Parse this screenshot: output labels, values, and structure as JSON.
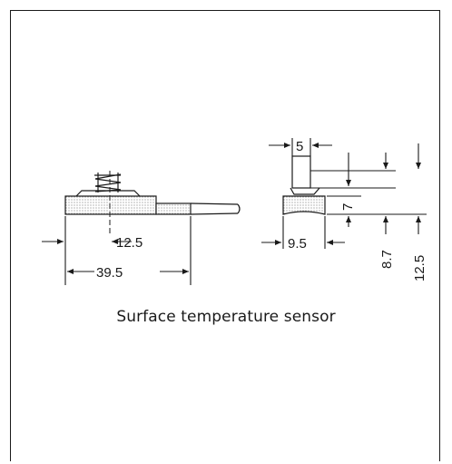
{
  "caption": "Surface temperature sensor",
  "side_view": {
    "dim_offset": "12.5",
    "dim_length": "39.5"
  },
  "end_view": {
    "dim_width_top": "5",
    "dim_width_base": "9.5",
    "dim_height_step": "7",
    "dim_height_body": "8.7",
    "dim_height_total": "12.5"
  },
  "colors": {
    "line": "#1a1a1a",
    "stipple": "#555555"
  }
}
